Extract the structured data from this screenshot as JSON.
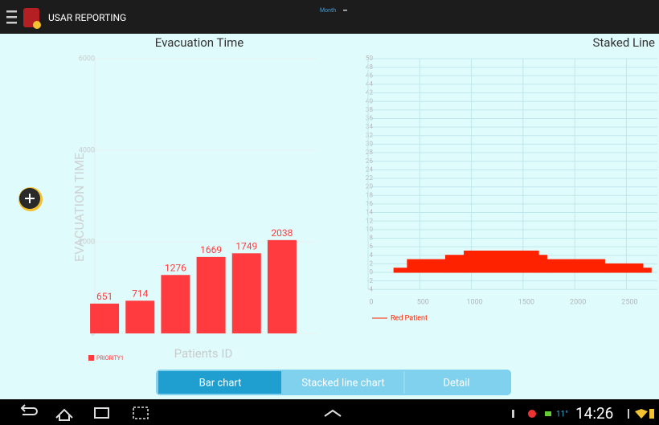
{
  "app_bar": {
    "title": "USAR REPORTING",
    "dropdown": "Month"
  },
  "chart_data": [
    {
      "type": "bar",
      "title": "Evacuation Time",
      "y_label": "EVACUATION TIME",
      "x_label": "Patients ID",
      "categories": [
        null,
        null,
        null,
        null,
        null,
        null
      ],
      "series": [
        {
          "name": "PRIORITY1",
          "color": "#ff3b3f",
          "values": [
            651,
            714,
            1276,
            1669,
            1749,
            2038
          ]
        }
      ],
      "ylim": [
        0,
        6000
      ],
      "yticks": [
        0,
        2000,
        4000,
        6000
      ],
      "grid": true
    },
    {
      "type": "area",
      "title": "Staked Line",
      "x": [
        0,
        250,
        380,
        750,
        930,
        1650,
        1730,
        2290,
        2660,
        2740
      ],
      "series": [
        {
          "name": "Red Patient",
          "color": "#ff2200",
          "values": [
            0,
            1,
            3,
            4,
            5,
            4,
            3,
            2,
            1,
            0
          ]
        }
      ],
      "xlim": [
        0,
        2800
      ],
      "xticks": [
        0,
        500,
        1000,
        1500,
        2000,
        2500
      ],
      "ylim": [
        -4,
        50
      ],
      "yticks": [
        -4,
        -2,
        0,
        2,
        4,
        6,
        8,
        10,
        12,
        14,
        16,
        18,
        20,
        22,
        24,
        26,
        28,
        30,
        32,
        34,
        36,
        38,
        40,
        42,
        44,
        46,
        48,
        50
      ],
      "grid": true
    }
  ],
  "tabs": [
    "Bar chart",
    "Stacked line chart",
    "Detail"
  ],
  "status_bar": {
    "temperature": "11°",
    "time": "14:26"
  }
}
